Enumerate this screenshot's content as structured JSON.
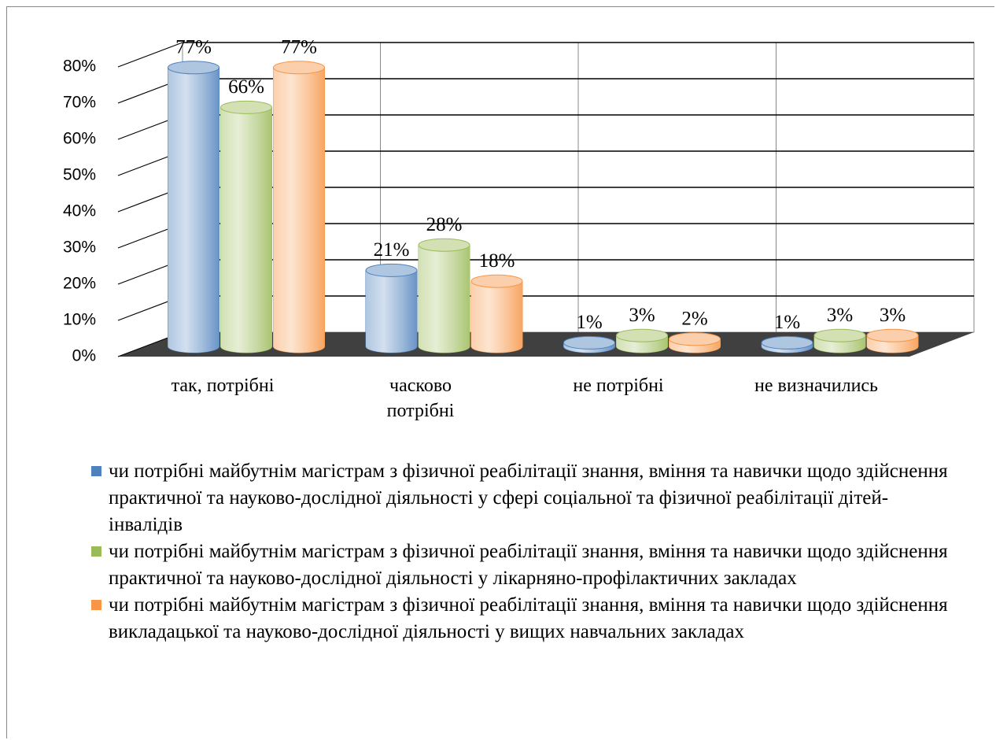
{
  "chart_data": {
    "type": "bar3d",
    "categories": [
      "так, потрібні",
      "часково потрібні",
      "не потрібні",
      "не визначились"
    ],
    "series": [
      {
        "name": "чи потрібні майбутнім магістрам з фізичної реабілітації знання, вміння та навички щодо здійснення практичної та науково-дослідної діяльності у сфері соціальної та фізичної реабілітації дітей-інвалідів",
        "color": "#4f81bd",
        "values": [
          77,
          21,
          1,
          1
        ],
        "value_labels": [
          "77%",
          "21%",
          "1%",
          "1%"
        ]
      },
      {
        "name": "чи потрібні майбутнім магістрам з фізичної реабілітації знання, вміння та навички щодо здійснення практичної та науково-дослідної діяльності у лікарняно-профілактичних закладах",
        "color": "#9bbb59",
        "values": [
          66,
          28,
          3,
          3
        ],
        "value_labels": [
          "66%",
          "28%",
          "3%",
          "3%"
        ]
      },
      {
        "name": "чи потрібні майбутнім магістрам з фізичної реабілітації знання, вміння та навички щодо здійснення викладацької та науково-дослідної діяльності у вищих навчальних закладах",
        "color": "#f79646",
        "values": [
          77,
          18,
          2,
          3
        ],
        "value_labels": [
          "77%",
          "18%",
          "2%",
          "3%"
        ]
      }
    ],
    "ylim": [
      0,
      80
    ],
    "yticks": [
      {
        "value": 0,
        "label": "0%"
      },
      {
        "value": 10,
        "label": "10%"
      },
      {
        "value": 20,
        "label": "20%"
      },
      {
        "value": 30,
        "label": "30%"
      },
      {
        "value": 40,
        "label": "40%"
      },
      {
        "value": 50,
        "label": "50%"
      },
      {
        "value": 60,
        "label": "60%"
      },
      {
        "value": 70,
        "label": "70%"
      },
      {
        "value": 80,
        "label": "80%"
      }
    ],
    "grid": true,
    "legend": "bottom"
  }
}
